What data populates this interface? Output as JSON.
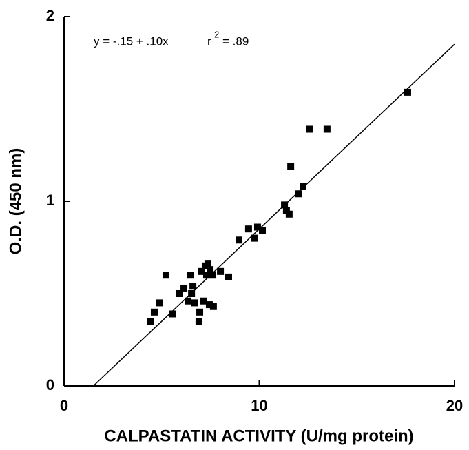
{
  "chart_data": {
    "type": "scatter",
    "x_label": "CALPASTATIN ACTIVITY (U/mg protein)",
    "y_label": "O.D. (450 nm)",
    "annotation": {
      "equation": "y = -.15 + .10x",
      "r": "r",
      "power": "2",
      "r_value": "= .89"
    },
    "fit": {
      "intercept": -0.15,
      "slope": 0.1
    },
    "x": [
      4.44,
      4.62,
      4.9,
      5.22,
      5.54,
      5.89,
      6.14,
      6.35,
      6.46,
      6.53,
      6.6,
      6.67,
      6.91,
      6.95,
      7.02,
      7.16,
      7.23,
      7.3,
      7.37,
      7.48,
      7.44,
      7.62,
      7.65,
      8.01,
      8.43,
      8.96,
      9.45,
      9.77,
      9.91,
      10.16,
      11.29,
      11.39,
      11.53,
      11.61,
      12.0,
      12.24,
      12.59,
      13.47,
      17.6
    ],
    "values": [
      0.35,
      0.4,
      0.45,
      0.6,
      0.39,
      0.5,
      0.53,
      0.46,
      0.6,
      0.5,
      0.54,
      0.45,
      0.35,
      0.4,
      0.62,
      0.46,
      0.65,
      0.6,
      0.66,
      0.63,
      0.44,
      0.6,
      0.43,
      0.62,
      0.59,
      0.79,
      0.85,
      0.8,
      0.86,
      0.84,
      0.98,
      0.95,
      0.93,
      1.19,
      1.04,
      1.08,
      1.39,
      1.39,
      1.59
    ],
    "color": "#000000",
    "xlim": [
      0,
      20
    ],
    "xticks": [
      0,
      10,
      20
    ],
    "ylim": [
      0,
      2
    ],
    "yticks": [
      0,
      1,
      2
    ]
  }
}
